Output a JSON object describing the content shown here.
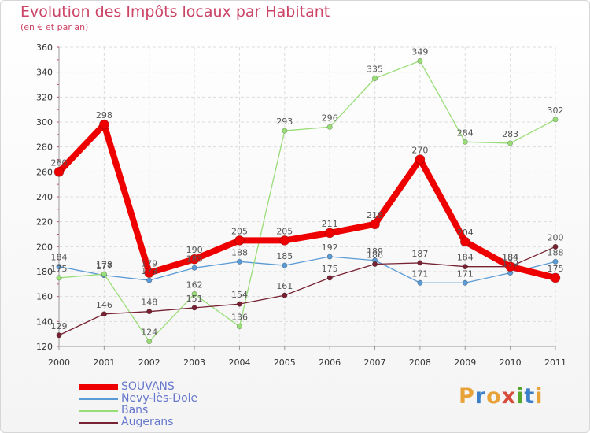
{
  "header": {
    "title": "Evolution des Impôts locaux par Habitant",
    "subtitle": "(en € et par an)"
  },
  "logo": {
    "text": "Proxiti",
    "colors": [
      "#e8a23a",
      "#3a7fc8",
      "#e8a23a",
      "#d94b3a",
      "#55a82b",
      "#3a7fc8",
      "#e8a23a"
    ]
  },
  "chart_data": {
    "type": "line",
    "title": "Evolution des Impôts locaux par Habitant",
    "subtitle": "(en € et par an)",
    "xlabel": "",
    "ylabel": "",
    "x": [
      "2000",
      "2001",
      "2002",
      "2003",
      "2004",
      "2005",
      "2006",
      "2007",
      "2008",
      "2009",
      "2010",
      "2011"
    ],
    "ylim": [
      120,
      360
    ],
    "yticks": [
      120,
      140,
      160,
      180,
      200,
      220,
      240,
      260,
      280,
      300,
      320,
      340,
      360
    ],
    "grid": true,
    "legend_position": "bottom-left",
    "series": [
      {
        "name": "SOUVANS",
        "color": "#ee0000",
        "width": 8,
        "radius": 6,
        "values": [
          260,
          298,
          179,
          190,
          205,
          205,
          211,
          218,
          270,
          204,
          184,
          175
        ]
      },
      {
        "name": "Nevy-lès-Dole",
        "color": "#5b9bd5",
        "width": 1.3,
        "radius": 3.2,
        "values": [
          184,
          177,
          173,
          183,
          188,
          185,
          192,
          189,
          171,
          171,
          179,
          188
        ]
      },
      {
        "name": "Bans",
        "color": "#99dd77",
        "width": 1.3,
        "radius": 3.2,
        "values": [
          175,
          178,
          124,
          162,
          136,
          293,
          296,
          335,
          349,
          284,
          283,
          302
        ]
      },
      {
        "name": "Augerans",
        "color": "#772233",
        "width": 1.3,
        "radius": 3.2,
        "values": [
          129,
          146,
          148,
          151,
          154,
          161,
          175,
          186,
          187,
          184,
          184,
          200
        ]
      }
    ]
  }
}
